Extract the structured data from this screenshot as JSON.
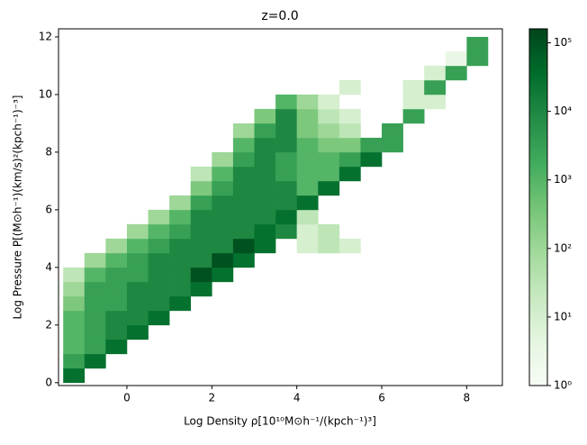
{
  "chart_data": {
    "type": "heatmap",
    "title": "z=0.0",
    "x_label": "Log Density ρ[10¹⁰M⊙h⁻¹/(kpch⁻¹)³]",
    "y_label": "Log Pressure P[(M⊙h⁻¹)(km/s)²(kpch⁻¹)⁻³]",
    "xlim": [
      -1.61,
      8.84
    ],
    "ylim": [
      -0.1,
      12.28
    ],
    "xticks": [
      0,
      2,
      4,
      6,
      8
    ],
    "yticks": [
      0,
      2,
      4,
      6,
      8,
      10,
      12
    ],
    "x_bins": [
      -1.5,
      -1,
      -0.5,
      0,
      0.5,
      1,
      1.5,
      2,
      2.5,
      3,
      3.5,
      4,
      4.5,
      5,
      5.5,
      6,
      6.5,
      7,
      7.5,
      8,
      8.5
    ],
    "y_bins": [
      0,
      0.5,
      1,
      1.5,
      2,
      2.5,
      3,
      3.5,
      4,
      4.5,
      5,
      5.5,
      6,
      6.5,
      7,
      7.5,
      8,
      8.5,
      9,
      9.5,
      10,
      10.5,
      11,
      11.5,
      12
    ],
    "counts": [
      [
        30000,
        null,
        null,
        null,
        null,
        null,
        null,
        null,
        null,
        null,
        null,
        null,
        null,
        null,
        null,
        null,
        null,
        null,
        null,
        null
      ],
      [
        3000,
        30000,
        null,
        null,
        null,
        null,
        null,
        null,
        null,
        null,
        null,
        null,
        null,
        null,
        null,
        null,
        null,
        null,
        null,
        null
      ],
      [
        1000,
        3000,
        30000,
        null,
        null,
        null,
        null,
        null,
        null,
        null,
        null,
        null,
        null,
        null,
        null,
        null,
        null,
        null,
        null,
        null
      ],
      [
        1000,
        3000,
        10000,
        30000,
        null,
        null,
        null,
        null,
        null,
        null,
        null,
        null,
        null,
        null,
        null,
        null,
        null,
        null,
        null,
        null
      ],
      [
        1000,
        3000,
        10000,
        10000,
        30000,
        null,
        null,
        null,
        null,
        null,
        null,
        null,
        null,
        null,
        null,
        null,
        null,
        null,
        null,
        null
      ],
      [
        300,
        3000,
        3000,
        10000,
        10000,
        30000,
        null,
        null,
        null,
        null,
        null,
        null,
        null,
        null,
        null,
        null,
        null,
        null,
        null,
        null
      ],
      [
        100,
        3000,
        3000,
        10000,
        10000,
        10000,
        30000,
        null,
        null,
        null,
        null,
        null,
        null,
        null,
        null,
        null,
        null,
        null,
        null,
        null
      ],
      [
        30,
        1000,
        3000,
        3000,
        10000,
        10000,
        100000,
        30000,
        null,
        null,
        null,
        null,
        null,
        null,
        null,
        null,
        null,
        null,
        null,
        null
      ],
      [
        null,
        100,
        1000,
        3000,
        10000,
        10000,
        10000,
        100000,
        30000,
        null,
        null,
        null,
        null,
        null,
        null,
        null,
        null,
        null,
        null,
        null
      ],
      [
        null,
        null,
        100,
        1000,
        3000,
        10000,
        10000,
        10000,
        100000,
        30000,
        null,
        10,
        30,
        10,
        null,
        null,
        null,
        null,
        null,
        null
      ],
      [
        null,
        null,
        null,
        100,
        1000,
        3000,
        10000,
        10000,
        10000,
        30000,
        10000,
        10,
        30,
        null,
        null,
        null,
        null,
        null,
        null,
        null
      ],
      [
        null,
        null,
        null,
        null,
        100,
        1000,
        10000,
        10000,
        10000,
        10000,
        30000,
        30,
        null,
        null,
        null,
        null,
        null,
        null,
        null,
        null
      ],
      [
        null,
        null,
        null,
        null,
        null,
        100,
        3000,
        10000,
        10000,
        10000,
        10000,
        30000,
        null,
        null,
        null,
        null,
        null,
        null,
        null,
        null
      ],
      [
        null,
        null,
        null,
        null,
        null,
        null,
        300,
        3000,
        10000,
        10000,
        10000,
        1000,
        30000,
        null,
        null,
        null,
        null,
        null,
        null,
        null
      ],
      [
        null,
        null,
        null,
        null,
        null,
        null,
        30,
        1000,
        10000,
        10000,
        3000,
        1000,
        1000,
        30000,
        null,
        null,
        null,
        null,
        null,
        null
      ],
      [
        null,
        null,
        null,
        null,
        null,
        null,
        null,
        100,
        3000,
        10000,
        3000,
        1000,
        1000,
        3000,
        30000,
        null,
        null,
        null,
        null,
        null
      ],
      [
        null,
        null,
        null,
        null,
        null,
        null,
        null,
        null,
        1000,
        10000,
        10000,
        1000,
        300,
        300,
        3000,
        3000,
        null,
        null,
        null,
        null
      ],
      [
        null,
        null,
        null,
        null,
        null,
        null,
        null,
        null,
        100,
        3000,
        10000,
        300,
        100,
        30,
        null,
        3000,
        null,
        null,
        null,
        null
      ],
      [
        null,
        null,
        null,
        null,
        null,
        null,
        null,
        null,
        null,
        300,
        10000,
        300,
        30,
        10,
        null,
        null,
        3000,
        null,
        null,
        null
      ],
      [
        null,
        null,
        null,
        null,
        null,
        null,
        null,
        null,
        null,
        null,
        1000,
        100,
        10,
        null,
        null,
        null,
        10,
        10,
        null,
        null
      ],
      [
        null,
        null,
        null,
        null,
        null,
        null,
        null,
        null,
        null,
        null,
        null,
        null,
        null,
        10,
        null,
        null,
        10,
        3000,
        null,
        null
      ],
      [
        null,
        null,
        null,
        null,
        null,
        null,
        null,
        null,
        null,
        null,
        null,
        null,
        null,
        null,
        null,
        null,
        null,
        10,
        3000,
        null
      ],
      [
        null,
        null,
        null,
        null,
        null,
        null,
        null,
        null,
        null,
        null,
        null,
        null,
        null,
        null,
        null,
        null,
        null,
        null,
        3,
        3000
      ],
      [
        null,
        null,
        null,
        null,
        null,
        null,
        null,
        null,
        null,
        null,
        null,
        null,
        null,
        null,
        null,
        null,
        null,
        null,
        null,
        3000
      ]
    ],
    "colors": [
      "#f7fcf5",
      "#e5f5e0",
      "#c7e9c0",
      "#a1d99b",
      "#74c476",
      "#41ab5d",
      "#238b45",
      "#006d2c",
      "#00441b"
    ],
    "clim": [
      1,
      160000
    ],
    "color_scale": "log",
    "cticks": [
      {
        "value": 1,
        "label": "10⁰"
      },
      {
        "value": 10,
        "label": "10¹"
      },
      {
        "value": 100,
        "label": "10²"
      },
      {
        "value": 1000,
        "label": "10³"
      },
      {
        "value": 10000,
        "label": "10⁴"
      },
      {
        "value": 100000,
        "label": "10⁵"
      }
    ]
  }
}
